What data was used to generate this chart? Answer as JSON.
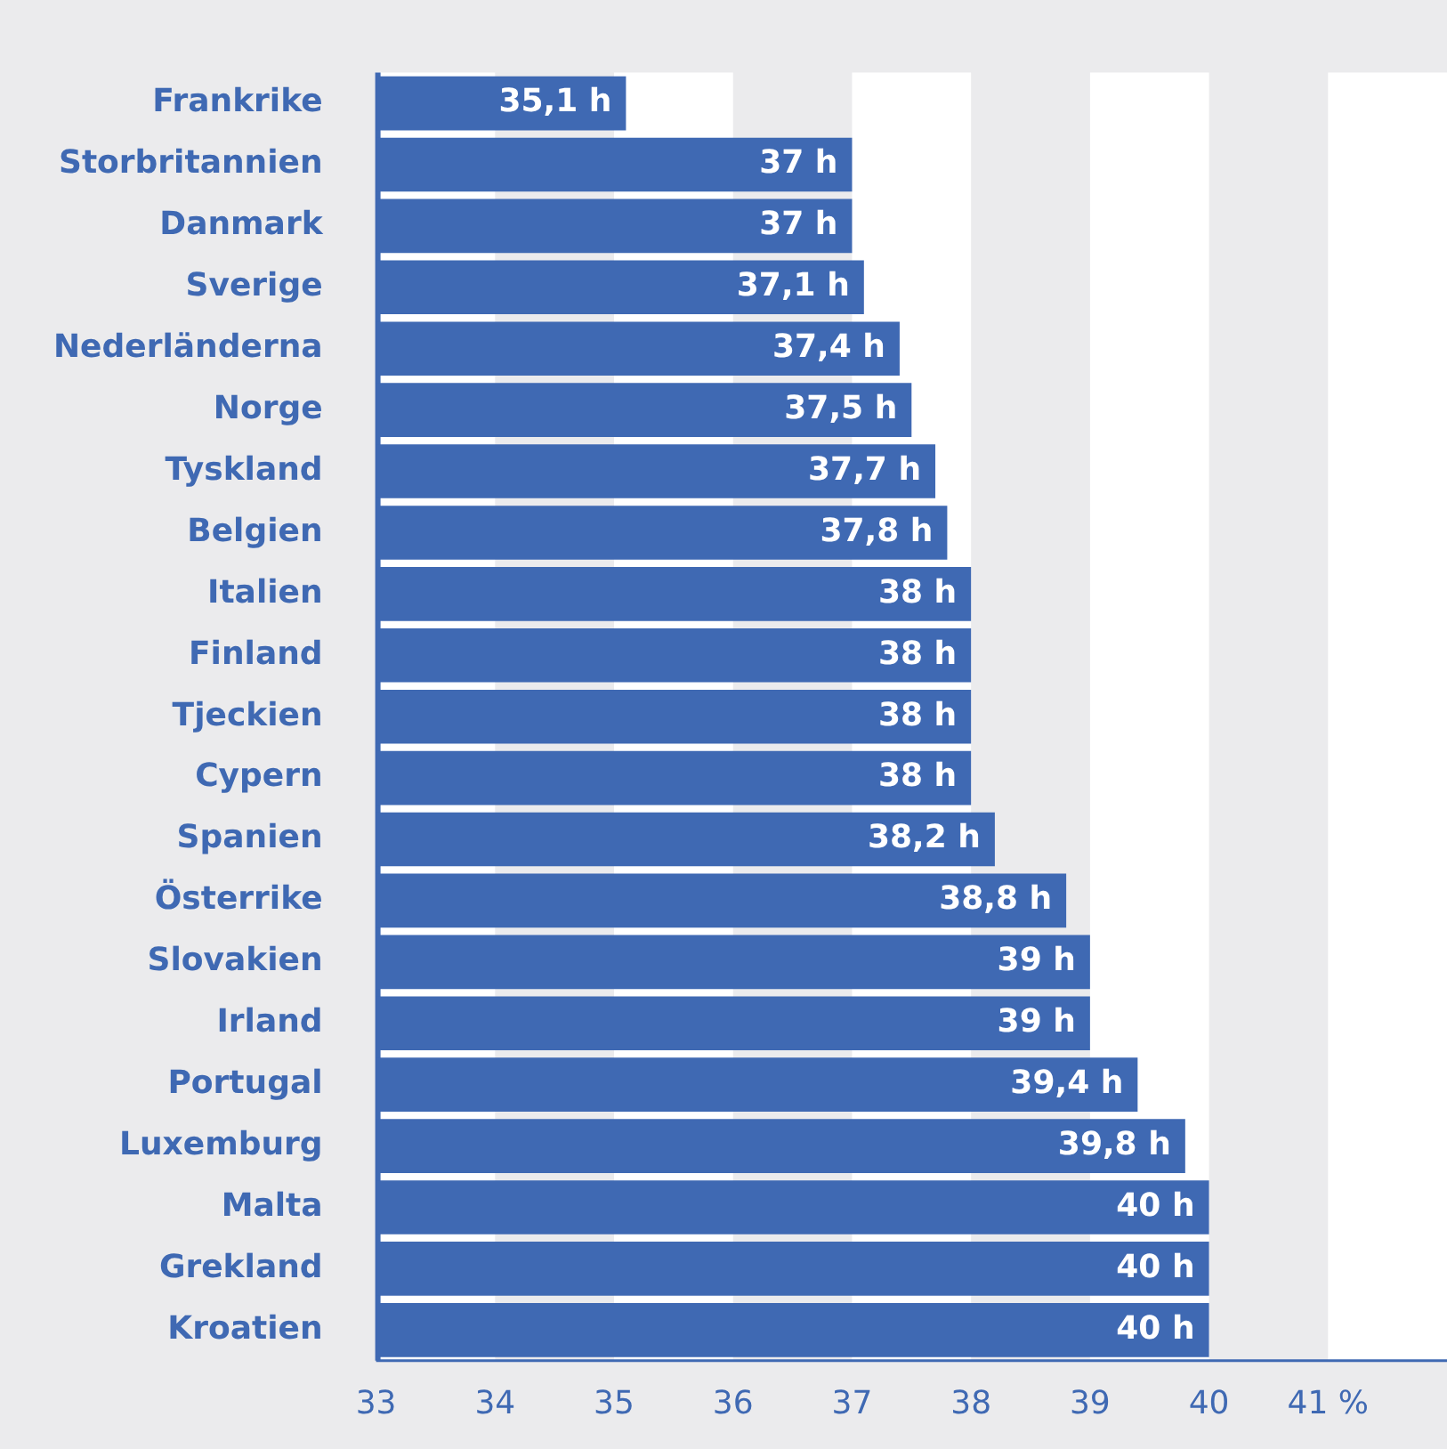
{
  "chart_data": {
    "type": "bar",
    "orientation": "horizontal",
    "categories": [
      "Frankrike",
      "Storbritannien",
      "Danmark",
      "Sverige",
      "Nederländerna",
      "Norge",
      "Tyskland",
      "Belgien",
      "Italien",
      "Finland",
      "Tjeckien",
      "Cypern",
      "Spanien",
      "Österrike",
      "Slovakien",
      "Irland",
      "Portugal",
      "Luxemburg",
      "Malta",
      "Grekland",
      "Kroatien"
    ],
    "values": [
      35.1,
      37,
      37,
      37.1,
      37.4,
      37.5,
      37.7,
      37.8,
      38,
      38,
      38,
      38,
      38.2,
      38.8,
      39,
      39,
      39.4,
      39.8,
      40,
      40,
      40
    ],
    "value_labels": [
      "35,1 h",
      "37 h",
      "37 h",
      "37,1 h",
      "37,4 h",
      "37,5 h",
      "37,7 h",
      "37,8 h",
      "38 h",
      "38 h",
      "38 h",
      "38 h",
      "38,2 h",
      "38,8 h",
      "39 h",
      "39 h",
      "39,4 h",
      "39,8 h",
      "40 h",
      "40 h",
      "40 h"
    ],
    "color": "#3f69b3",
    "xlim": [
      33,
      42
    ],
    "xticks": [
      33,
      34,
      35,
      36,
      37,
      38,
      39,
      40,
      {
        "value": 41,
        "label": "41 %"
      }
    ],
    "bands": [
      {
        "axis": "x",
        "from": 33,
        "to": 34,
        "color": "#ffffff"
      },
      {
        "axis": "x",
        "from": 35,
        "to": 36,
        "color": "#ffffff"
      },
      {
        "axis": "x",
        "from": 37,
        "to": 38,
        "color": "#ffffff"
      },
      {
        "axis": "x",
        "from": 39,
        "to": 40,
        "color": "#ffffff"
      },
      {
        "axis": "x",
        "from": 41,
        "to": 42,
        "color": "#ffffff"
      }
    ],
    "grid": false,
    "legend": false
  }
}
